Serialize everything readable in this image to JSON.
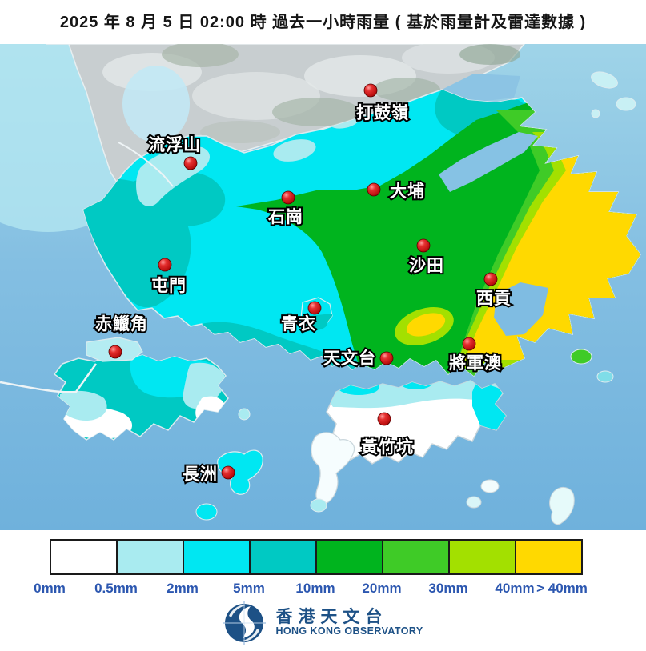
{
  "title": "2025 年 8 月 5 日 02:00 時  過去一小時雨量 ( 基於雨量計及雷達數據 )",
  "map": {
    "stations": [
      {
        "name": "打鼓嶺",
        "dot": [
          463,
          113
        ],
        "text": [
          478,
          148
        ],
        "anchor": "middle"
      },
      {
        "name": "流浮山",
        "dot": [
          238,
          204
        ],
        "text": [
          218,
          188
        ],
        "anchor": "middle"
      },
      {
        "name": "大埔",
        "dot": [
          467,
          237
        ],
        "text": [
          487,
          246
        ],
        "anchor": "start"
      },
      {
        "name": "石崗",
        "dot": [
          360,
          247
        ],
        "text": [
          357,
          278
        ],
        "anchor": "middle"
      },
      {
        "name": "沙田",
        "dot": [
          529,
          307
        ],
        "text": [
          533,
          339
        ],
        "anchor": "middle"
      },
      {
        "name": "屯門",
        "dot": [
          206,
          331
        ],
        "text": [
          211,
          364
        ],
        "anchor": "middle"
      },
      {
        "name": "西貢",
        "dot": [
          613,
          349
        ],
        "text": [
          617,
          380
        ],
        "anchor": "middle"
      },
      {
        "name": "赤鱲角",
        "dot": [
          144,
          440
        ],
        "text": [
          152,
          412
        ],
        "anchor": "middle"
      },
      {
        "name": "青衣",
        "dot": [
          393,
          385
        ],
        "text": [
          373,
          412
        ],
        "anchor": "middle"
      },
      {
        "name": "天文台",
        "dot": [
          483,
          448
        ],
        "text": [
          470,
          455
        ],
        "anchor": "end"
      },
      {
        "name": "將軍澳",
        "dot": [
          586,
          430
        ],
        "text": [
          594,
          461
        ],
        "anchor": "middle"
      },
      {
        "name": "黃竹坑",
        "dot": [
          480,
          524
        ],
        "text": [
          484,
          566
        ],
        "anchor": "middle"
      },
      {
        "name": "長洲",
        "dot": [
          285,
          591
        ],
        "text": [
          272,
          600
        ],
        "anchor": "end"
      }
    ]
  },
  "legend": {
    "entries": [
      {
        "label": "0mm",
        "color": "#ffffff"
      },
      {
        "label": "0.5mm",
        "color": "#a9ebf0"
      },
      {
        "label": "2mm",
        "color": "#00e7f2"
      },
      {
        "label": "5mm",
        "color": "#00c9c3"
      },
      {
        "label": "10mm",
        "color": "#00b41e"
      },
      {
        "label": "20mm",
        "color": "#3fcb27"
      },
      {
        "label": "30mm",
        "color": "#a3e000"
      },
      {
        "label": "40mm",
        "color": "#ffd900"
      }
    ],
    "overflow_label": "> 40mm",
    "label_color": "#2c57b0"
  },
  "footer": {
    "org_zh": "香港天文台",
    "org_en": "HONG KONG OBSERVATORY",
    "logo_color": "#1d5186"
  }
}
